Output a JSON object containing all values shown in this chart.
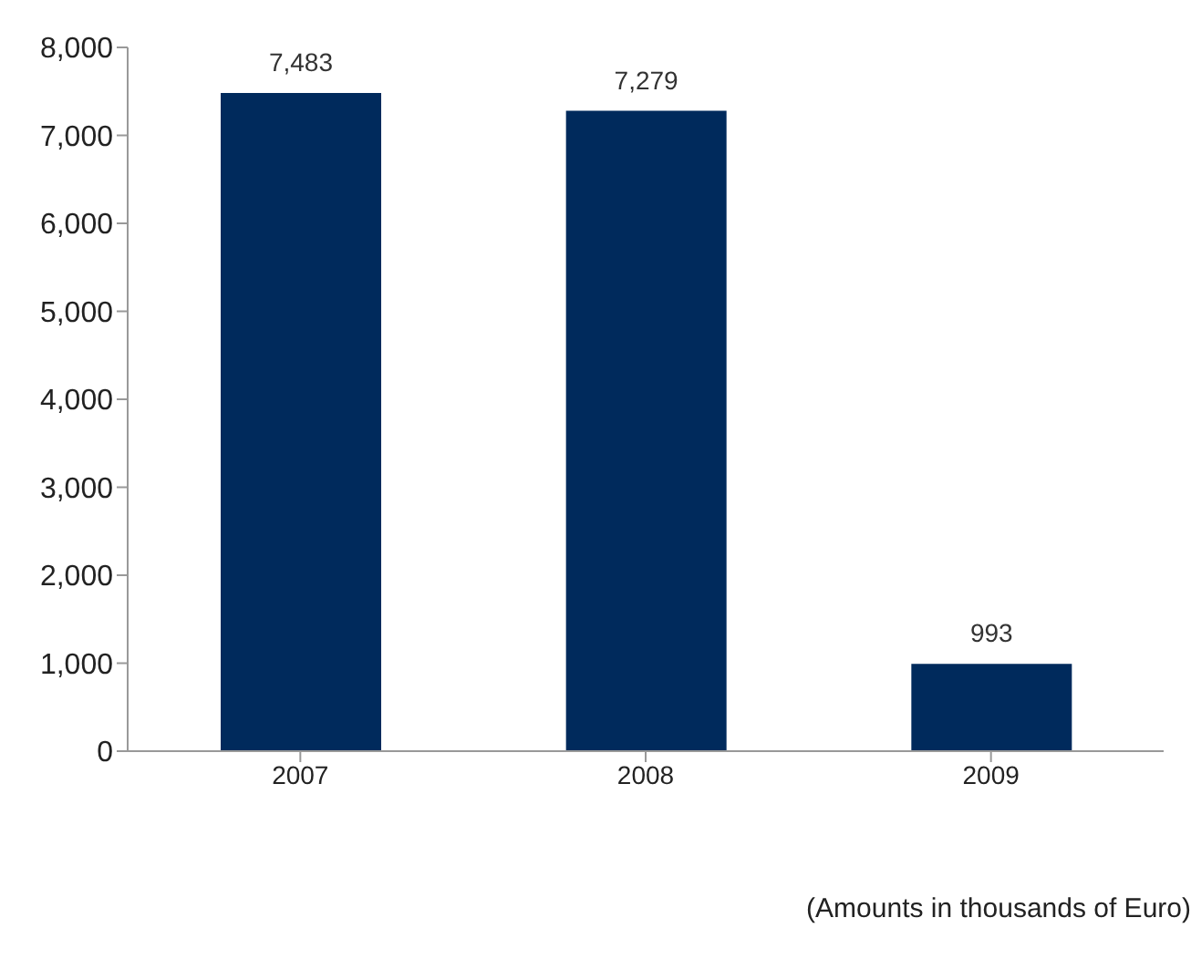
{
  "chart_data": {
    "type": "bar",
    "categories": [
      "2007",
      "2008",
      "2009"
    ],
    "values": [
      7483,
      7279,
      993
    ],
    "color": "#002a5c",
    "ylim": [
      0,
      8000
    ],
    "yticks": [
      {
        "value": 0,
        "label": "0"
      },
      {
        "value": 1000,
        "label": "1,000"
      },
      {
        "value": 2000,
        "label": "2,000"
      },
      {
        "value": 3000,
        "label": "3,000"
      },
      {
        "value": 4000,
        "label": "4,000"
      },
      {
        "value": 5000,
        "label": "5,000"
      },
      {
        "value": 6000,
        "label": "6,000"
      },
      {
        "value": 7000,
        "label": "7,000"
      },
      {
        "value": 8000,
        "label": "8,000"
      }
    ],
    "value_labels": [
      "7,483",
      "7,279",
      "993"
    ],
    "grid": false,
    "annotations": [
      "(Amounts in thousands of Euro)"
    ]
  }
}
